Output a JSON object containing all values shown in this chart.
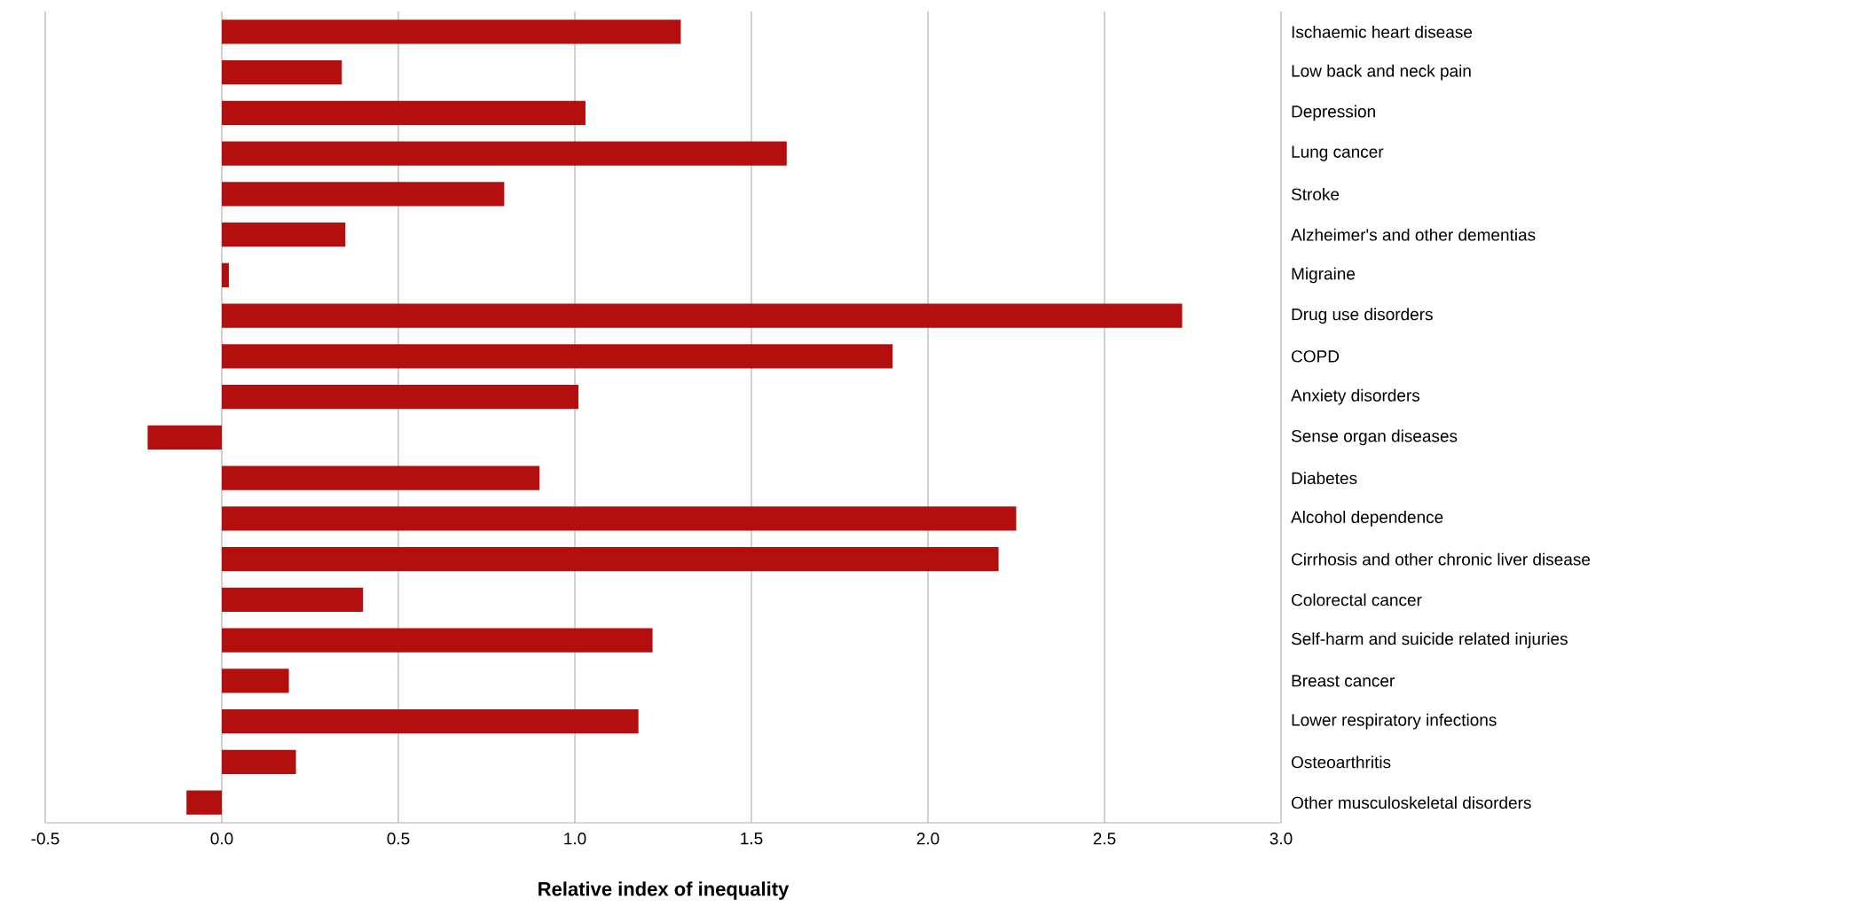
{
  "chart_data": {
    "type": "bar",
    "orientation": "horizontal",
    "xlabel": "Relative index of inequality",
    "categories": [
      "Ischaemic heart disease",
      "Low back and neck pain",
      "Depression",
      "Lung cancer",
      "Stroke",
      "Alzheimer's and other dementias",
      "Migraine",
      "Drug use disorders",
      "COPD",
      "Anxiety disorders",
      "Sense organ diseases",
      "Diabetes",
      "Alcohol dependence",
      "Cirrhosis and other chronic liver disease",
      "Colorectal cancer",
      "Self-harm and suicide related injuries",
      "Breast cancer",
      "Lower respiratory infections",
      "Osteoarthritis",
      "Other musculoskeletal disorders"
    ],
    "values": [
      1.3,
      0.34,
      1.03,
      1.6,
      0.8,
      0.35,
      0.02,
      2.72,
      1.9,
      1.01,
      -0.21,
      0.9,
      2.25,
      2.2,
      0.4,
      1.22,
      0.19,
      1.18,
      0.21,
      -0.1
    ],
    "color": "#b30f0f",
    "xlim": [
      -0.5,
      3.0
    ],
    "xticks": [
      {
        "value": -0.5,
        "label": "-0.5"
      },
      {
        "value": 0,
        "label": "0.0"
      },
      {
        "value": 0.5,
        "label": "0.5"
      },
      {
        "value": 1,
        "label": "1.0"
      },
      {
        "value": 1.5,
        "label": "1.5"
      },
      {
        "value": 2,
        "label": "2.0"
      },
      {
        "value": 2.5,
        "label": "2.5"
      },
      {
        "value": 3,
        "label": "3.0"
      }
    ],
    "grid": "x",
    "legend": false
  }
}
